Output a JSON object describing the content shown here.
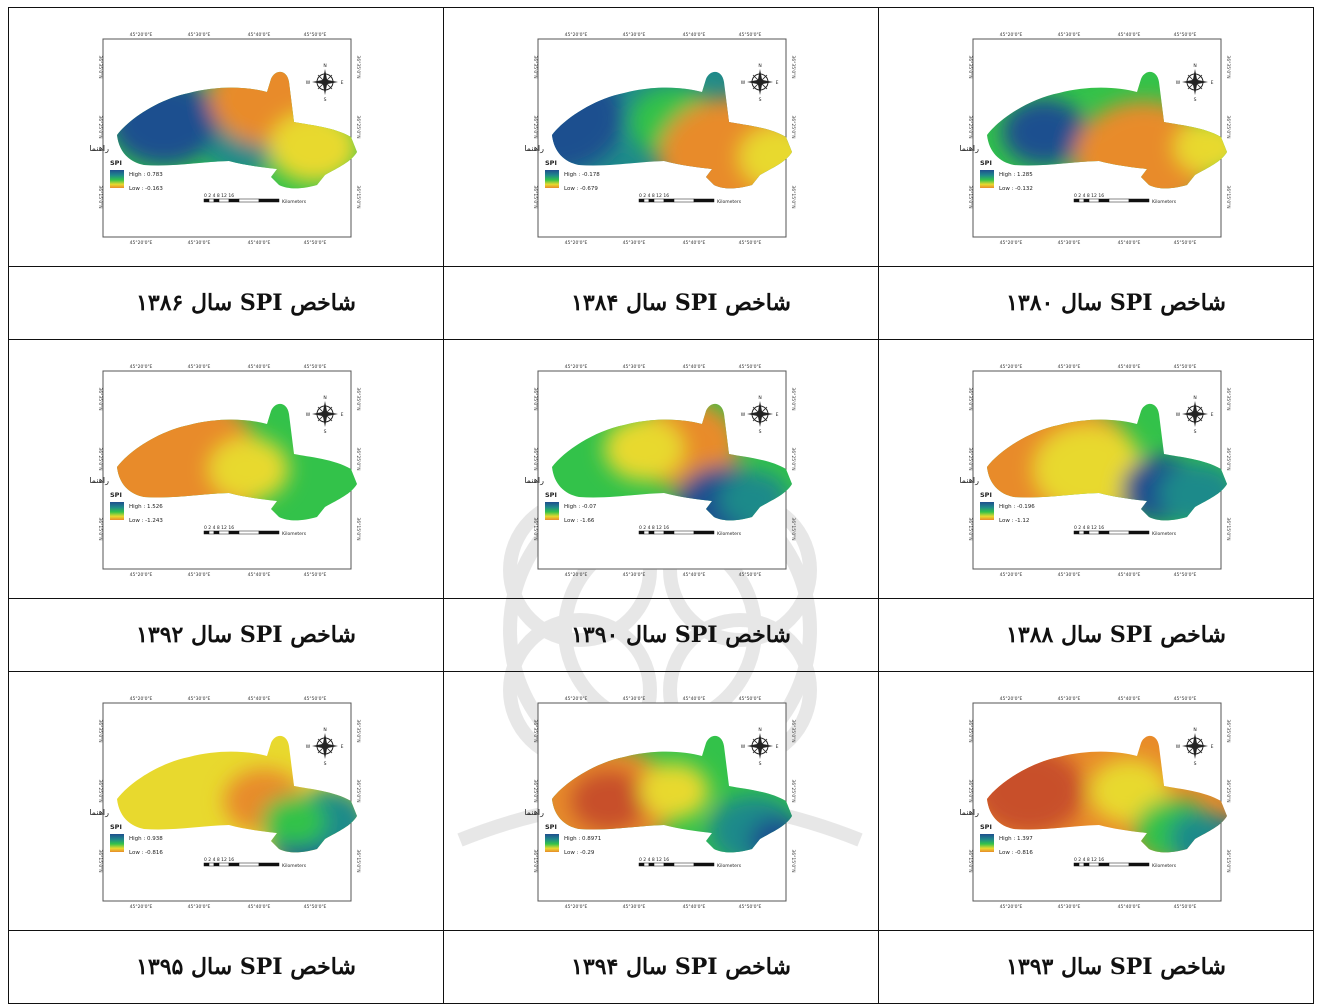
{
  "watermark_description": "faint Persian rosette watermark of the institute",
  "cells": [
    {
      "row": 0,
      "col": 0,
      "caption": "شاخص SPI سال ۱۳۸۶",
      "legend_title": "راهنما",
      "index": "SPI",
      "high": "High : 0.783",
      "low": "Low : -0.163",
      "scheme": "a"
    },
    {
      "row": 0,
      "col": 1,
      "caption": "شاخص SPI سال ۱۳۸۴",
      "legend_title": "راهنما",
      "index": "SPI",
      "high": "High : -0.178",
      "low": "Low : -0.679",
      "scheme": "b"
    },
    {
      "row": 0,
      "col": 2,
      "caption": "شاخص SPI سال ۱۳۸۰",
      "legend_title": "راهنما",
      "index": "SPI",
      "high": "High : 1.285",
      "low": "Low : -0.132",
      "scheme": "c"
    },
    {
      "row": 1,
      "col": 0,
      "caption": "شاخص SPI سال ۱۳۹۲",
      "legend_title": "راهنما",
      "index": "SPI",
      "high": "High : 1.526",
      "low": "Low : -1.243",
      "scheme": "d"
    },
    {
      "row": 1,
      "col": 1,
      "caption": "شاخص SPI سال ۱۳۹۰",
      "legend_title": "راهنما",
      "index": "SPI",
      "high": "High : -0.07",
      "low": "Low : -1.66",
      "scheme": "e"
    },
    {
      "row": 1,
      "col": 2,
      "caption": "شاخص SPI سال ۱۳۸۸",
      "legend_title": "راهنما",
      "index": "SPI",
      "high": "High : -0.196",
      "low": "Low : -1.12",
      "scheme": "f"
    },
    {
      "row": 2,
      "col": 0,
      "caption": "شاخص SPI سال ۱۳۹۵",
      "legend_title": "راهنما",
      "index": "SPI",
      "high": "High : 0.938",
      "low": "Low : -0.816",
      "scheme": "g"
    },
    {
      "row": 2,
      "col": 1,
      "caption": "شاخص SPI سال ۱۳۹۴",
      "legend_title": "راهنما",
      "index": "SPI",
      "high": "High : 0.8971",
      "low": "Low : -0.29",
      "scheme": "h"
    },
    {
      "row": 2,
      "col": 2,
      "caption": "شاخص SPI سال ۱۳۹۳",
      "legend_title": "راهنما",
      "index": "SPI",
      "high": "High : 1.397",
      "low": "Low : -0.816",
      "scheme": "i"
    }
  ],
  "top_ticks": [
    "45°20'0\"E",
    "45°30'0\"E",
    "45°40'0\"E",
    "45°50'0\"E"
  ],
  "side_ticks": [
    "36°35'0\"N",
    "36°25'0\"N",
    "36°15'0\"N"
  ],
  "scale_numbers": "0 2 4    8    12   16",
  "scale_unit": "Kilometers",
  "compass_letters": {
    "n": "N",
    "s": "S",
    "e": "E",
    "w": "W"
  },
  "colors": {
    "blue": "#1f4f8f",
    "teal": "#1f8a8a",
    "green": "#33c24a",
    "yellow": "#e8d92e",
    "orange": "#e88b2a",
    "red": "#c84f2a"
  }
}
